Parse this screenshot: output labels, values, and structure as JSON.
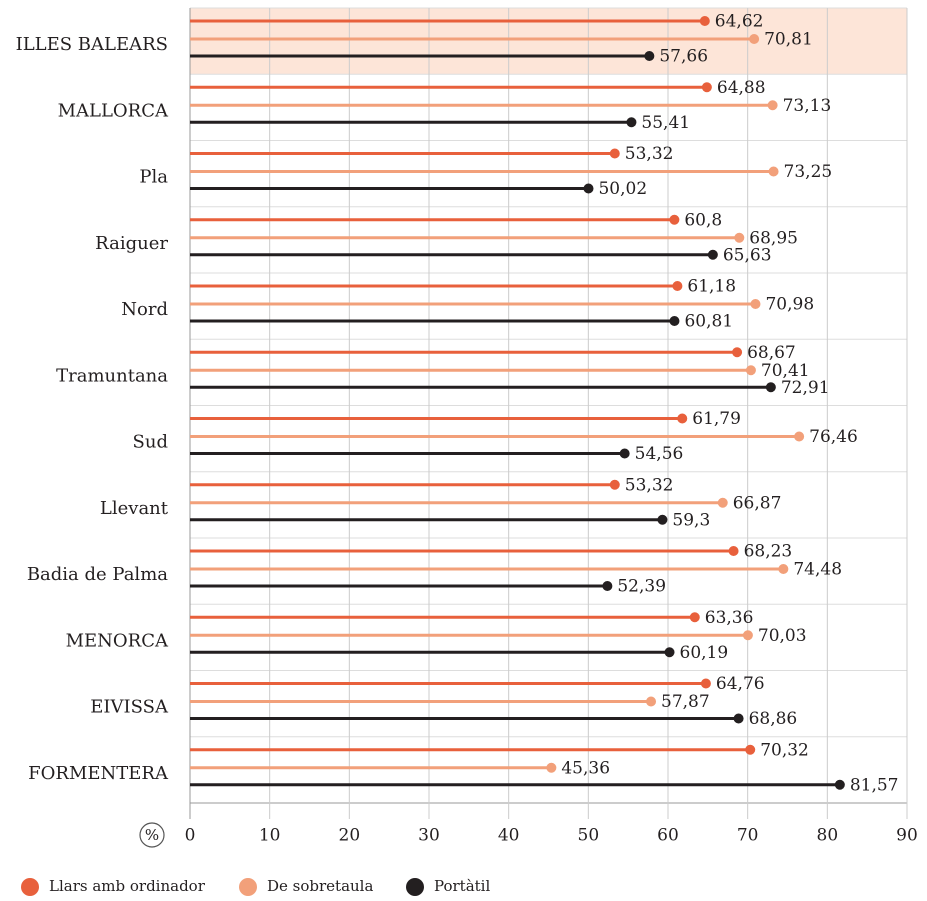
{
  "chart_data": {
    "type": "lollipop",
    "orientation": "horizontal",
    "xlabel": "%",
    "categories": [
      "ILLES BALEARS",
      "MALLORCA",
      "Pla",
      "Raiguer",
      "Nord",
      "Tramuntana",
      "Sud",
      "Llevant",
      "Badia de Palma",
      "MENORCA",
      "EIVISSA",
      "FORMENTERA"
    ],
    "series": [
      {
        "name": "Llars amb ordinador",
        "color": "#e8603c",
        "values": [
          64.62,
          64.88,
          53.32,
          60.8,
          61.18,
          68.67,
          61.79,
          53.32,
          68.23,
          63.36,
          64.76,
          70.32
        ],
        "value_labels": [
          "64,62",
          "64,88",
          "53,32",
          "60,8",
          "61,18",
          "68,67",
          "61,79",
          "53,32",
          "68,23",
          "63,36",
          "64,76",
          "70,32"
        ]
      },
      {
        "name": "De sobretaula",
        "color": "#f2a07a",
        "values": [
          70.81,
          73.13,
          73.25,
          68.95,
          70.98,
          70.41,
          76.46,
          66.87,
          74.48,
          70.03,
          57.87,
          45.36
        ],
        "value_labels": [
          "70,81",
          "73,13",
          "73,25",
          "68,95",
          "70,98",
          "70,41",
          "76,46",
          "66,87",
          "74,48",
          "70,03",
          "57,87",
          "45,36"
        ]
      },
      {
        "name": "Portàtil",
        "color": "#231f20",
        "values": [
          57.66,
          55.41,
          50.02,
          65.63,
          60.81,
          72.91,
          54.56,
          59.3,
          52.39,
          60.19,
          68.86,
          81.57
        ],
        "value_labels": [
          "57,66",
          "55,41",
          "50,02",
          "65,63",
          "60,81",
          "72,91",
          "54,56",
          "59,3",
          "52,39",
          "60,19",
          "68,86",
          "81,57"
        ]
      }
    ],
    "xlim": [
      0,
      90
    ],
    "xticks": [
      0,
      10,
      20,
      30,
      40,
      50,
      60,
      70,
      80,
      90
    ],
    "grid": true
  }
}
